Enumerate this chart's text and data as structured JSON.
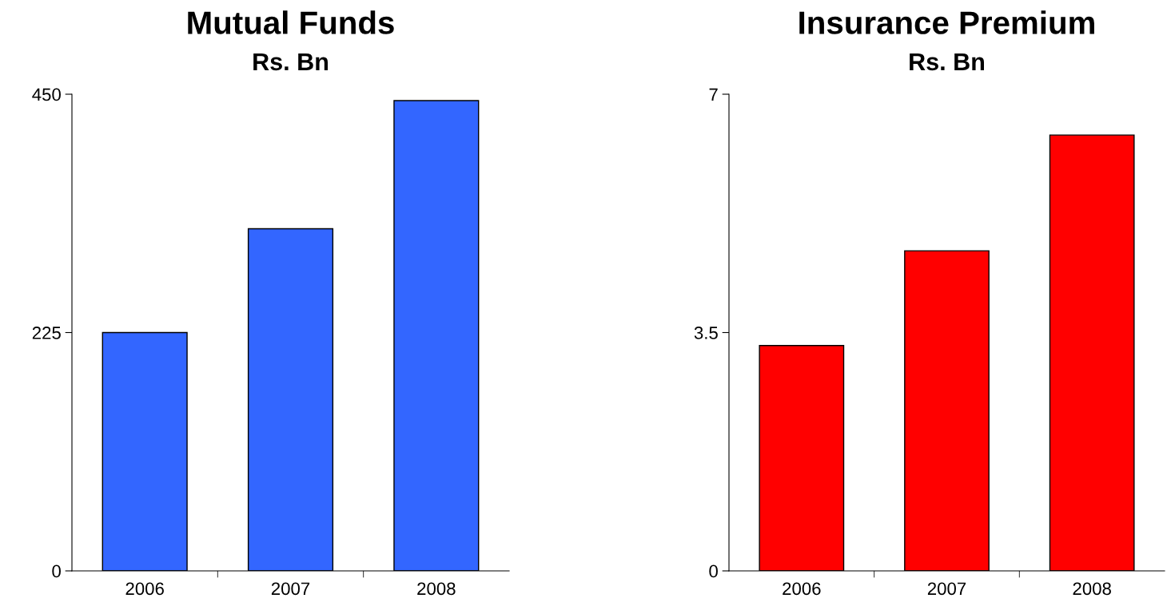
{
  "chart_data": [
    {
      "type": "bar",
      "title": "Mutual Funds",
      "subtitle": "Rs. Bn",
      "categories": [
        "2006",
        "2007",
        "2008"
      ],
      "values": [
        225,
        323,
        444
      ],
      "color": "#3366ff",
      "ylim": [
        0,
        450
      ],
      "yticks": [
        0,
        225,
        450
      ],
      "grid": false,
      "legend": false
    },
    {
      "type": "bar",
      "title": "Insurance Premium",
      "subtitle": "Rs. Bn",
      "categories": [
        "2006",
        "2007",
        "2008"
      ],
      "values": [
        3.31,
        4.7,
        6.4
      ],
      "color": "#ff0000",
      "ylim": [
        0,
        7
      ],
      "yticks": [
        0,
        3.5,
        7
      ],
      "grid": false,
      "legend": false
    }
  ]
}
